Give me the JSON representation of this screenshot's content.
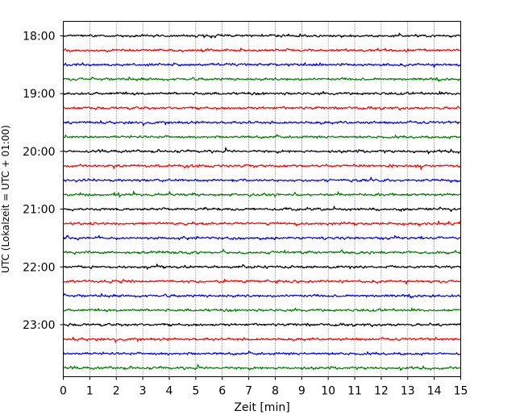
{
  "chart_data": {
    "type": "line",
    "title": "",
    "xlabel": "Zeit  [min]",
    "ylabel": "UTC (Lokalzeit = UTC + 01:00)",
    "xlim": [
      0,
      15
    ],
    "x_ticks": [
      "0",
      "1",
      "2",
      "3",
      "4",
      "5",
      "6",
      "7",
      "8",
      "9",
      "10",
      "11",
      "12",
      "13",
      "14",
      "15"
    ],
    "y_ticks": [
      "18:00",
      "19:00",
      "20:00",
      "21:00",
      "22:00",
      "23:00"
    ],
    "y_start": "17:45",
    "row_interval_min": 15,
    "row_count": 24,
    "colors": [
      "#000000",
      "#ff0000",
      "#0000ff",
      "#008000"
    ],
    "grid": "vertical dotted",
    "series_description": [
      {
        "time": "18:00",
        "color": "#000000"
      },
      {
        "time": "18:15",
        "color": "#ff0000"
      },
      {
        "time": "18:30",
        "color": "#0000ff"
      },
      {
        "time": "18:45",
        "color": "#008000"
      },
      {
        "time": "19:00",
        "color": "#000000"
      },
      {
        "time": "19:15",
        "color": "#ff0000"
      },
      {
        "time": "19:30",
        "color": "#0000ff"
      },
      {
        "time": "19:45",
        "color": "#008000"
      },
      {
        "time": "20:00",
        "color": "#000000"
      },
      {
        "time": "20:15",
        "color": "#ff0000"
      },
      {
        "time": "20:30",
        "color": "#0000ff"
      },
      {
        "time": "20:45",
        "color": "#008000"
      },
      {
        "time": "21:00",
        "color": "#000000"
      },
      {
        "time": "21:15",
        "color": "#ff0000"
      },
      {
        "time": "21:30",
        "color": "#0000ff"
      },
      {
        "time": "21:45",
        "color": "#008000"
      },
      {
        "time": "22:00",
        "color": "#000000"
      },
      {
        "time": "22:15",
        "color": "#ff0000"
      },
      {
        "time": "22:30",
        "color": "#0000ff"
      },
      {
        "time": "22:45",
        "color": "#008000"
      },
      {
        "time": "23:00",
        "color": "#000000"
      },
      {
        "time": "23:15",
        "color": "#ff0000"
      },
      {
        "time": "23:30",
        "color": "#0000ff"
      },
      {
        "time": "23:45",
        "color": "#008000"
      }
    ]
  }
}
